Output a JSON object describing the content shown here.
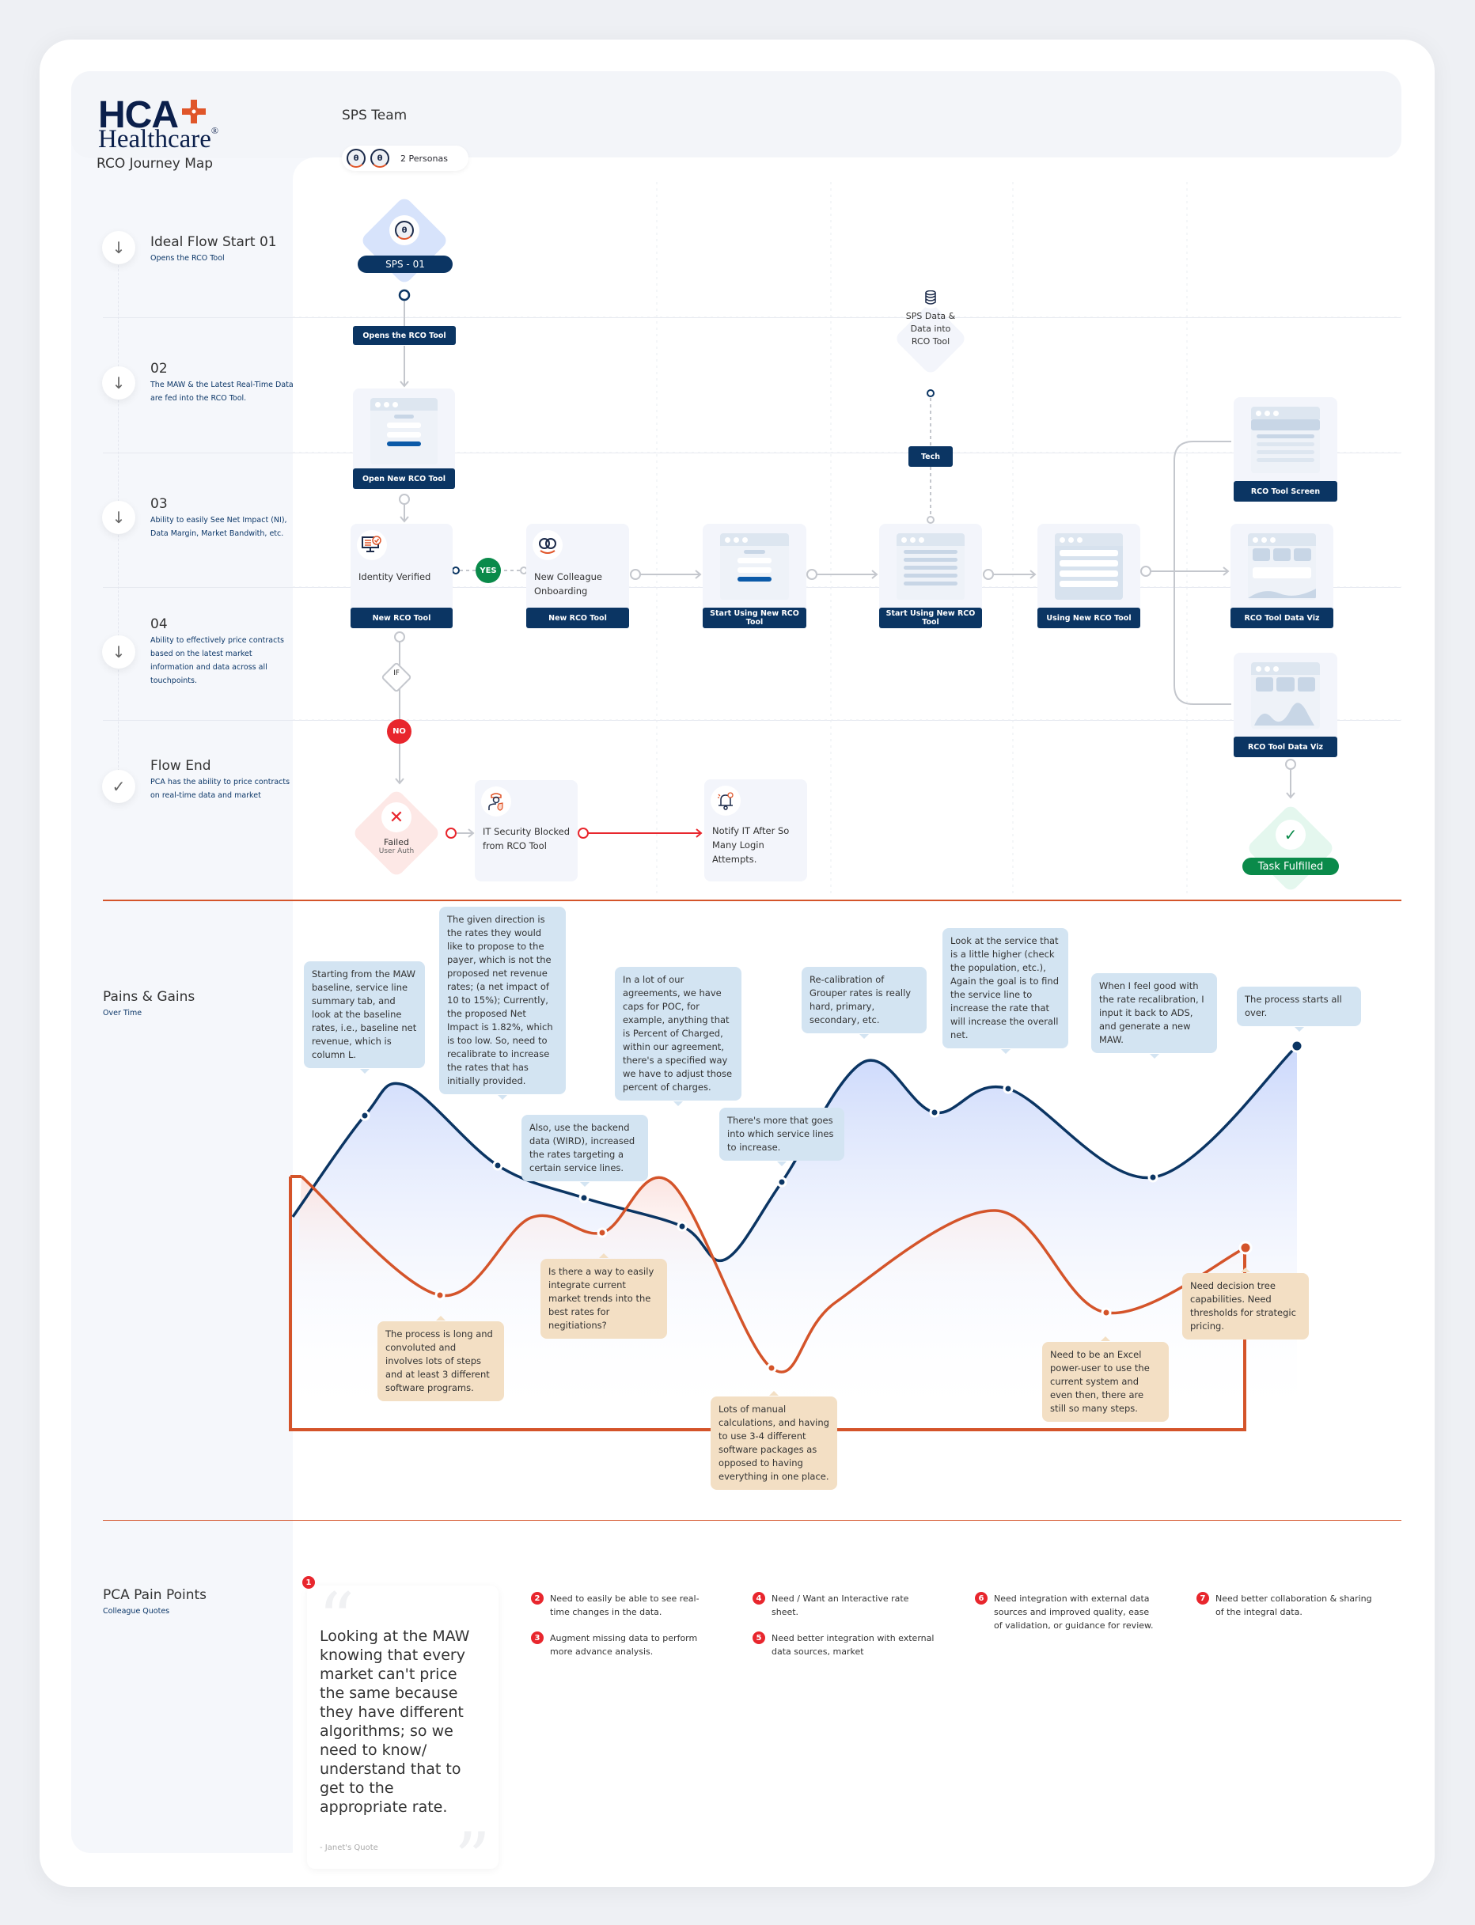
{
  "header": {
    "logo_top": "HCA",
    "logo_bottom": "Healthcare",
    "logo_reg": "®",
    "title": "RCO Journey Map",
    "team": "SPS Team",
    "persona_initial": "θ",
    "personas_count": "2 Personas"
  },
  "stages": [
    {
      "title": "Ideal Flow Start 01",
      "desc": "Opens the RCO Tool",
      "icon": "arrow-down-icon"
    },
    {
      "title": "02",
      "desc": "The MAW & the Latest Real-Time Data are fed into the RCO Tool.",
      "icon": "arrow-down-icon"
    },
    {
      "title": "03",
      "desc": "Ability to easily See Net Impact (NI), Data Margin, Market Bandwith, etc.",
      "icon": "arrow-down-icon"
    },
    {
      "title": "04",
      "desc": "Ability to effectively price contracts based on the latest market information and data across all touchpoints.",
      "icon": "arrow-down-icon"
    },
    {
      "title": "Flow End",
      "desc": "PCA has the ability to price contracts on real-time data and market",
      "icon": "check-icon"
    }
  ],
  "flow": {
    "start": {
      "label": "SPS - 01"
    },
    "opens_tag": "Opens the RCO Tool",
    "open_new": "Open New RCO Tool",
    "identity": {
      "text": "Identity Verified",
      "label": "New RCO Tool"
    },
    "yes": "YES",
    "if": "IF",
    "no": "NO",
    "onboarding": {
      "text": "New Colleague Onboarding",
      "label": "New RCO Tool"
    },
    "start_using_1": "Start Using New RCO Tool",
    "start_using_2": "Start Using New RCO Tool",
    "using": "Using New RCO Tool",
    "sps_data": "SPS Data & Data into RCO Tool",
    "tech": "Tech",
    "screen": "RCO Tool Screen",
    "data_viz_1": "RCO Tool Data Viz",
    "data_viz_2": "RCO Tool Data Viz",
    "task": "Task Fulfilled",
    "failed": {
      "title": "Failed",
      "sub": "User Auth"
    },
    "it_security": "IT Security Blocked from RCO Tool",
    "notify": "Notify IT After So Many Login Attempts.",
    "colors": {
      "navy": "#0b3563",
      "yes": "#0a8a4a",
      "no": "#e8262d",
      "pain": "#d4542a",
      "gain": "#0b3563"
    }
  },
  "pains_gains": {
    "title": "Pains & Gains",
    "subtitle": "Over Time",
    "gains": [
      "Starting from the MAW baseline, service line summary tab, and look at the baseline rates, i.e., baseline net revenue, which is column L.",
      "The given direction is the rates they would like to propose to the payer, which is not the proposed net revenue rates; (a net impact of 10 to 15%); Currently, the proposed Net Impact is 1.82%, which is too low. So, need to recalibrate to increase the rates that has initially provided.",
      "Also, use the backend data (WIRD), increased the rates targeting a certain service lines.",
      "In a lot of our agreements, we have caps for POC, for example, anything that is Percent of Charged, within our agreement, there's a specified way we have to adjust those percent of charges.",
      "There's more that goes into which service lines to increase.",
      "Re-calibration of Grouper rates is really hard, primary, secondary, etc.",
      "Look at the service that is a little higher (check the population, etc.), Again the goal is to find the service line to increase the rate that will increase the overall net.",
      "When I feel good with the rate recalibration, I input it back to ADS, and generate a new MAW.",
      "The process starts all over."
    ],
    "pains": [
      "The process is long and convoluted and involves lots of steps and at least 3 different software programs.",
      "Is there a way to easily integrate current market trends into the best rates for negitiations?",
      "Lots of manual calculations, and having to use 3-4 different software packages as opposed to having everything in one place.",
      "Need to be an Excel power-user to use the current system and even then, there are still so many steps.",
      "Need decision tree capabilities. Need thresholds for strategic pricing."
    ]
  },
  "pain_points": {
    "title": "PCA Pain Points",
    "subtitle": "Colleague Quotes",
    "quote": {
      "number": "1",
      "text": "Looking at the MAW knowing that every market can't price the same because they have different algorithms; so we need to know/ understand that to get to the appropriate rate.",
      "author": "- Janet's Quote"
    },
    "items": [
      {
        "number": "2",
        "text": "Need to easily be able to see real-time changes in the data."
      },
      {
        "number": "3",
        "text": "Augment missing data to perform more advance analysis."
      },
      {
        "number": "4",
        "text": "Need / Want an Interactive rate sheet."
      },
      {
        "number": "5",
        "text": "Need better integration with external data sources, market"
      },
      {
        "number": "6",
        "text": "Need integration with external data sources and improved quality, ease of validation, or guidance for review."
      },
      {
        "number": "7",
        "text": "Need better collaboration & sharing of the integral data."
      }
    ]
  }
}
